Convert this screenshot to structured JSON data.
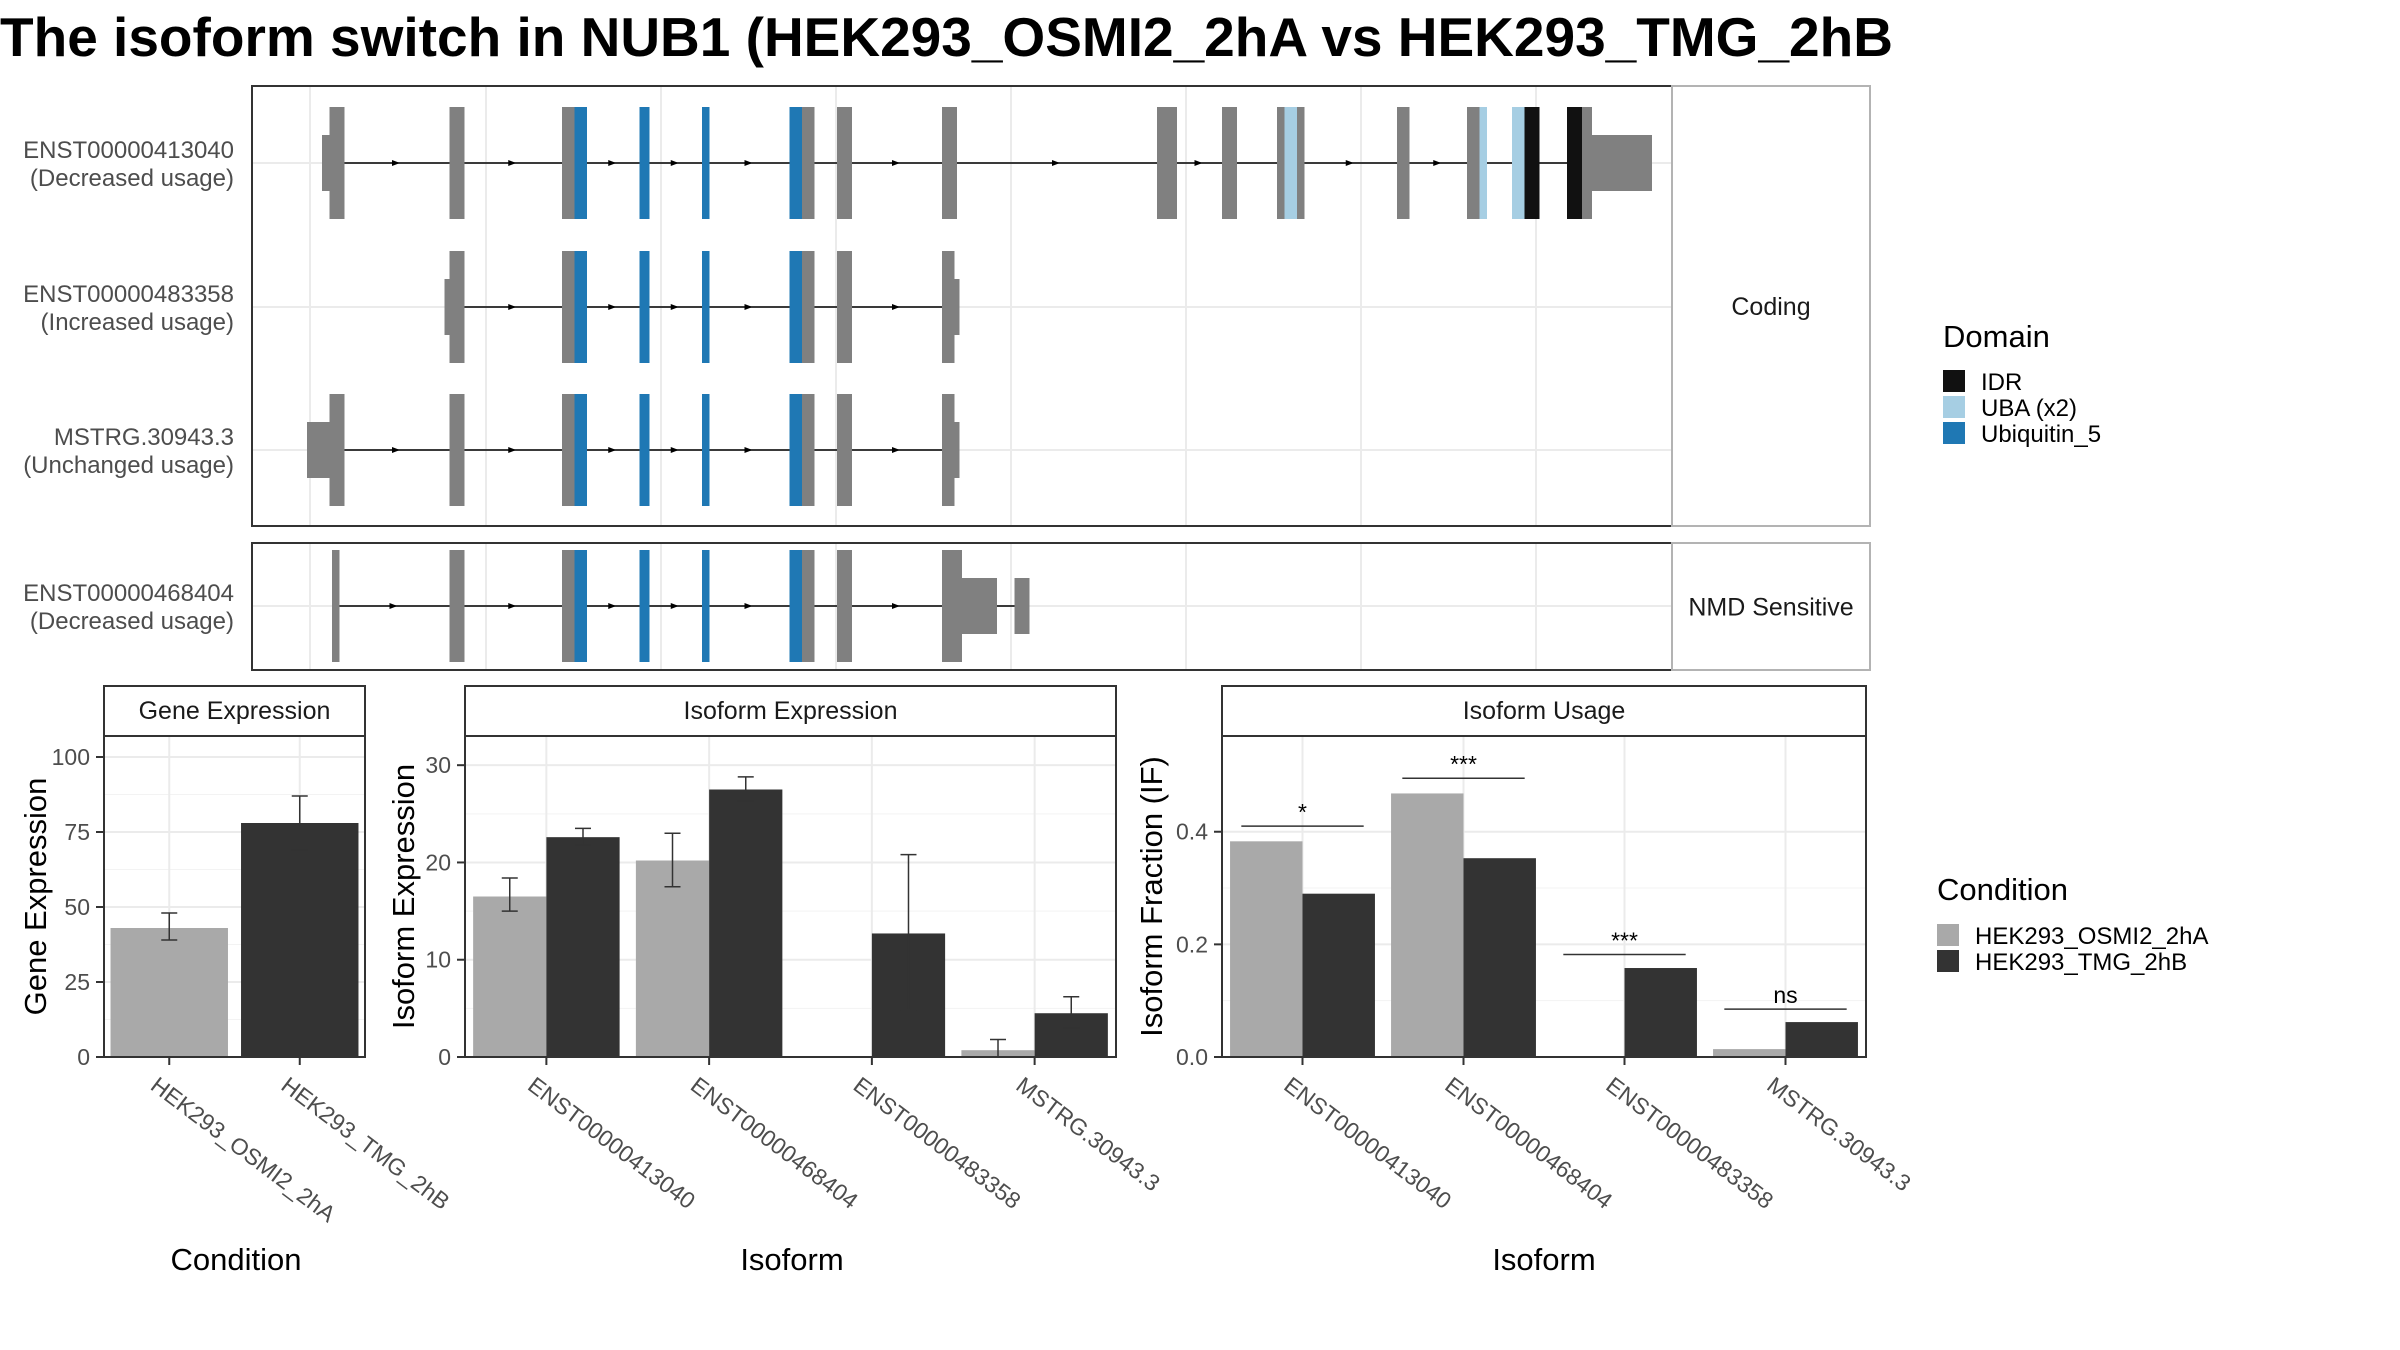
{
  "title": "The isoform switch in NUB1 (HEK293_OSMI2_2hA vs HEK293_TMG_2hB",
  "colors": {
    "exon": "#808080",
    "idr": "#111111",
    "uba": "#a6cee3",
    "ubiquitin": "#1f78b4",
    "condA": "#a9a9a9",
    "condB": "#333333"
  },
  "transcript_panels": [
    {
      "label": "Coding",
      "transcripts": [
        {
          "id": "ENST00000413040",
          "usage": "(Decreased usage)",
          "features": [
            {
              "kind": "utr",
              "start": 14,
              "end": 15.5
            },
            {
              "kind": "cds",
              "start": 15.5,
              "end": 18.5
            },
            {
              "kind": "cds",
              "start": 39.5,
              "end": 42.5
            },
            {
              "kind": "cds",
              "start": 62,
              "end": 64.5,
              "color": "exon"
            },
            {
              "kind": "cds",
              "start": 64.5,
              "end": 67,
              "color": "ubiquitin"
            },
            {
              "kind": "cds",
              "start": 77.5,
              "end": 79.5,
              "color": "ubiquitin"
            },
            {
              "kind": "cds",
              "start": 90,
              "end": 91.5,
              "color": "ubiquitin"
            },
            {
              "kind": "cds",
              "start": 107.5,
              "end": 110,
              "color": "ubiquitin"
            },
            {
              "kind": "cds",
              "start": 110,
              "end": 112.5
            },
            {
              "kind": "cds",
              "start": 117,
              "end": 120
            },
            {
              "kind": "cds",
              "start": 138,
              "end": 141
            },
            {
              "kind": "cds",
              "start": 181,
              "end": 185
            },
            {
              "kind": "cds",
              "start": 194,
              "end": 197
            },
            {
              "kind": "cds",
              "start": 205,
              "end": 206.5
            },
            {
              "kind": "cds",
              "start": 206.5,
              "end": 209,
              "color": "uba"
            },
            {
              "kind": "cds",
              "start": 209,
              "end": 210.5
            },
            {
              "kind": "cds",
              "start": 229,
              "end": 231.5
            },
            {
              "kind": "cds",
              "start": 243,
              "end": 245.5
            },
            {
              "kind": "cds",
              "start": 245.5,
              "end": 247,
              "color": "uba"
            },
            {
              "kind": "cds",
              "start": 252,
              "end": 254.5,
              "color": "uba"
            },
            {
              "kind": "cds",
              "start": 254.5,
              "end": 257.5,
              "color": "idr"
            },
            {
              "kind": "cds",
              "start": 263,
              "end": 266,
              "color": "idr"
            },
            {
              "kind": "cds",
              "start": 266,
              "end": 268
            },
            {
              "kind": "utr",
              "start": 268,
              "end": 280
            }
          ]
        },
        {
          "id": "ENST00000483358",
          "usage": "(Increased usage)",
          "features": [
            {
              "kind": "utr",
              "start": 38.5,
              "end": 39.5
            },
            {
              "kind": "cds",
              "start": 39.5,
              "end": 42.5
            },
            {
              "kind": "cds",
              "start": 62,
              "end": 64.5
            },
            {
              "kind": "cds",
              "start": 64.5,
              "end": 67,
              "color": "ubiquitin"
            },
            {
              "kind": "cds",
              "start": 77.5,
              "end": 79.5,
              "color": "ubiquitin"
            },
            {
              "kind": "cds",
              "start": 90,
              "end": 91.5,
              "color": "ubiquitin"
            },
            {
              "kind": "cds",
              "start": 107.5,
              "end": 110,
              "color": "ubiquitin"
            },
            {
              "kind": "cds",
              "start": 110,
              "end": 112.5
            },
            {
              "kind": "cds",
              "start": 117,
              "end": 120
            },
            {
              "kind": "cds",
              "start": 138,
              "end": 140.5
            },
            {
              "kind": "utr",
              "start": 140.5,
              "end": 141.5
            }
          ]
        },
        {
          "id": "MSTRG.30943.3",
          "usage": "(Unchanged usage)",
          "features": [
            {
              "kind": "utr",
              "start": 11,
              "end": 15.5
            },
            {
              "kind": "cds",
              "start": 15.5,
              "end": 18.5
            },
            {
              "kind": "cds",
              "start": 39.5,
              "end": 42.5
            },
            {
              "kind": "cds",
              "start": 62,
              "end": 64.5
            },
            {
              "kind": "cds",
              "start": 64.5,
              "end": 67,
              "color": "ubiquitin"
            },
            {
              "kind": "cds",
              "start": 77.5,
              "end": 79.5,
              "color": "ubiquitin"
            },
            {
              "kind": "cds",
              "start": 90,
              "end": 91.5,
              "color": "ubiquitin"
            },
            {
              "kind": "cds",
              "start": 107.5,
              "end": 110,
              "color": "ubiquitin"
            },
            {
              "kind": "cds",
              "start": 110,
              "end": 112.5
            },
            {
              "kind": "cds",
              "start": 117,
              "end": 120
            },
            {
              "kind": "cds",
              "start": 138,
              "end": 140.5
            },
            {
              "kind": "utr",
              "start": 140.5,
              "end": 141.5
            }
          ]
        }
      ]
    },
    {
      "label": "NMD Sensitive",
      "transcripts": [
        {
          "id": "ENST00000468404",
          "usage": "(Decreased usage)",
          "features": [
            {
              "kind": "cds",
              "start": 16,
              "end": 17.5
            },
            {
              "kind": "cds",
              "start": 39.5,
              "end": 42.5
            },
            {
              "kind": "cds",
              "start": 62,
              "end": 64.5
            },
            {
              "kind": "cds",
              "start": 64.5,
              "end": 67,
              "color": "ubiquitin"
            },
            {
              "kind": "cds",
              "start": 77.5,
              "end": 79.5,
              "color": "ubiquitin"
            },
            {
              "kind": "cds",
              "start": 90,
              "end": 91.5,
              "color": "ubiquitin"
            },
            {
              "kind": "cds",
              "start": 107.5,
              "end": 110,
              "color": "ubiquitin"
            },
            {
              "kind": "cds",
              "start": 110,
              "end": 112.5
            },
            {
              "kind": "cds",
              "start": 117,
              "end": 120
            },
            {
              "kind": "cds",
              "start": 138,
              "end": 142
            },
            {
              "kind": "utr",
              "start": 142,
              "end": 149
            },
            {
              "kind": "utr",
              "start": 152.5,
              "end": 155.5
            }
          ]
        }
      ]
    }
  ],
  "domain_legend": {
    "title": "Domain",
    "entries": [
      {
        "label": "IDR",
        "color": "idr"
      },
      {
        "label": "UBA (x2)",
        "color": "uba"
      },
      {
        "label": "Ubiquitin_5",
        "color": "ubiquitin"
      }
    ]
  },
  "condition_legend": {
    "title": "Condition",
    "entries": [
      {
        "label": "HEK293_OSMI2_2hA",
        "color": "condA"
      },
      {
        "label": "HEK293_TMG_2hB",
        "color": "condB"
      }
    ]
  },
  "chart_data": [
    {
      "type": "bar",
      "title": "Gene Expression",
      "xlabel": "Condition",
      "ylabel": "Gene Expression",
      "ylim": [
        0,
        107
      ],
      "yticks": [
        0,
        25,
        50,
        75,
        100
      ],
      "categories": [
        "HEK293_OSMI2_2hA",
        "HEK293_TMG_2hB"
      ],
      "values": [
        43,
        78
      ],
      "errors": [
        [
          39,
          48
        ],
        [
          69,
          87
        ]
      ]
    },
    {
      "type": "bar",
      "title": "Isoform Expression",
      "xlabel": "Isoform",
      "ylabel": "Isoform Expression",
      "ylim": [
        0,
        33
      ],
      "yticks": [
        0,
        10,
        20,
        30
      ],
      "categories": [
        "ENST00000413040",
        "ENST00000468404",
        "ENST00000483358",
        "MSTRG.30943.3"
      ],
      "series": [
        {
          "name": "HEK293_OSMI2_2hA",
          "values": [
            16.5,
            20.2,
            0,
            0.7
          ],
          "errors": [
            [
              15,
              18.4
            ],
            [
              17.5,
              23
            ],
            [
              0,
              0
            ],
            [
              0,
              1.8
            ]
          ]
        },
        {
          "name": "HEK293_TMG_2hB",
          "values": [
            22.6,
            27.5,
            12.7,
            4.5
          ],
          "errors": [
            [
              21.8,
              23.5
            ],
            [
              26.3,
              28.8
            ],
            [
              4.8,
              20.8
            ],
            [
              3,
              6.2
            ]
          ]
        }
      ]
    },
    {
      "type": "bar",
      "title": "Isoform Usage",
      "xlabel": "Isoform",
      "ylabel": "Isoform Fraction (IF)",
      "ylim": [
        0,
        0.57
      ],
      "yticks": [
        0.0,
        0.2,
        0.4
      ],
      "ytick_labels": [
        "0.0",
        "0.2",
        "0.4"
      ],
      "categories": [
        "ENST00000413040",
        "ENST00000468404",
        "ENST00000483358",
        "MSTRG.30943.3"
      ],
      "series": [
        {
          "name": "HEK293_OSMI2_2hA",
          "values": [
            0.383,
            0.468,
            0,
            0.014
          ]
        },
        {
          "name": "HEK293_TMG_2hB",
          "values": [
            0.29,
            0.353,
            0.158,
            0.062
          ]
        }
      ],
      "significance": [
        {
          "label": "*",
          "y": 0.41
        },
        {
          "label": "***",
          "y": 0.495
        },
        {
          "label": "***",
          "y": 0.182
        },
        {
          "label": "ns",
          "y": 0.085
        }
      ]
    }
  ]
}
